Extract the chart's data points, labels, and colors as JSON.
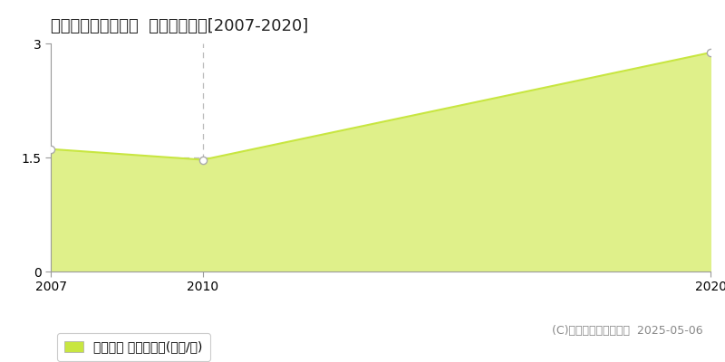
{
  "title": "中新川郡上市町横越  土地価格推移[2007-2020]",
  "years": [
    2007,
    2010,
    2020
  ],
  "values": [
    1.61,
    1.47,
    2.88
  ],
  "line_color": "#c8e641",
  "fill_color": "#dff08a",
  "fill_alpha": 1.0,
  "marker_color": "#ffffff",
  "marker_edge_color": "#aaaaaa",
  "bg_color": "#ffffff",
  "grid_color": "#bbbbbb",
  "xlim": [
    2007,
    2020
  ],
  "ylim": [
    0,
    3
  ],
  "yticks": [
    0,
    1.5,
    3
  ],
  "xticks": [
    2007,
    2010,
    2020
  ],
  "vline_x": 2010,
  "hline_y": 1.5,
  "legend_label": "土地価格 平均坪単価(万円/坪)",
  "copyright_text": "(C)土地価格ドットコム  2025-05-06",
  "title_fontsize": 13,
  "axis_fontsize": 10,
  "legend_fontsize": 10,
  "copyright_fontsize": 9
}
